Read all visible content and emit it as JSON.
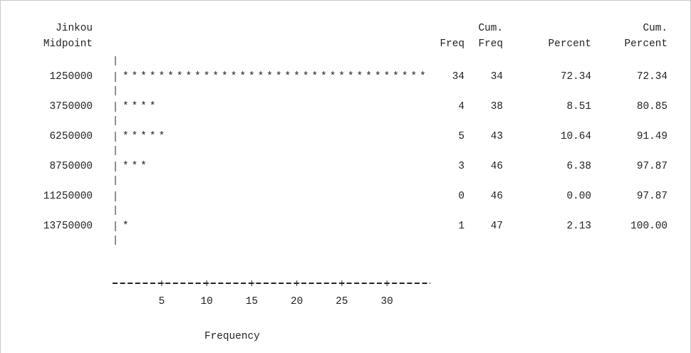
{
  "chart_data": {
    "type": "table",
    "row_header": [
      "Jinkou",
      "Midpoint"
    ],
    "columns": [
      {
        "key": "freq",
        "header": [
          "",
          "Freq"
        ]
      },
      {
        "key": "cum_freq",
        "header": [
          "Cum.",
          "Freq"
        ]
      },
      {
        "key": "percent",
        "header": [
          "",
          "Percent"
        ]
      },
      {
        "key": "cum_percent",
        "header": [
          "Cum.",
          "Percent"
        ]
      }
    ],
    "rows": [
      {
        "midpoint": "1250000",
        "freq": "34",
        "cum_freq": "34",
        "percent": "72.34",
        "cum_percent": "72.34"
      },
      {
        "midpoint": "3750000",
        "freq": "4",
        "cum_freq": "38",
        "percent": "8.51",
        "cum_percent": "80.85"
      },
      {
        "midpoint": "6250000",
        "freq": "5",
        "cum_freq": "43",
        "percent": "10.64",
        "cum_percent": "91.49"
      },
      {
        "midpoint": "8750000",
        "freq": "3",
        "cum_freq": "46",
        "percent": "6.38",
        "cum_percent": "97.87"
      },
      {
        "midpoint": "11250000",
        "freq": "0",
        "cum_freq": "46",
        "percent": "0.00",
        "cum_percent": "97.87"
      },
      {
        "midpoint": "13750000",
        "freq": "1",
        "cum_freq": "47",
        "percent": "2.13",
        "cum_percent": "100.00"
      }
    ],
    "bar_symbol": "*",
    "xlabel": "Frequency",
    "x_ticks": [
      5,
      10,
      15,
      20,
      25,
      30
    ],
    "xlim": [
      0,
      34
    ]
  }
}
